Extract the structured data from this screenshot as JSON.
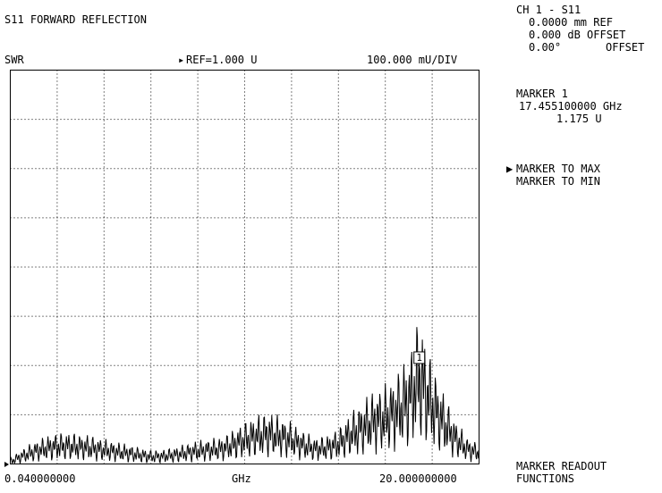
{
  "header": {
    "title": "S11 FORWARD REFLECTION",
    "format": "SWR",
    "reference": "REF=1.000 U",
    "scale": "100.000 mU/DIV"
  },
  "channel": {
    "label": "CH 1 - S11",
    "ref_plane": "0.0000 mm REF",
    "db_offset": "0.000 dB OFFSET",
    "phase_value": "0.00°",
    "phase_offset": "OFFSET"
  },
  "marker": {
    "title": "MARKER 1",
    "frequency": "17.455100000 GHz",
    "value": "1.175 U",
    "tag": "1"
  },
  "menu": {
    "items": [
      "MARKER TO MAX",
      "MARKER TO MIN"
    ],
    "selected": 0,
    "footer_line1": "MARKER READOUT",
    "footer_line2": "FUNCTIONS"
  },
  "axis": {
    "start": "0.040000000",
    "unit": "GHz",
    "stop": "20.000000000"
  },
  "chart_data": {
    "type": "line",
    "title": "S11 FORWARD REFLECTION",
    "xlabel": "GHz",
    "ylabel": "SWR",
    "xlim": [
      0.04,
      20.0
    ],
    "ylim": [
      1.0,
      1.8
    ],
    "x_divisions": 10,
    "y_divisions": 8,
    "grid": "dotted",
    "reference_value": 1.0,
    "marker_1": {
      "x": 17.4551,
      "y": 1.175
    },
    "series": [
      {
        "x": [
          0.04,
          0.5,
          1.0,
          1.5,
          2.0,
          2.5,
          3.0,
          3.5,
          4.0,
          4.5,
          5.0,
          5.5,
          6.0,
          6.5,
          7.0,
          7.5,
          8.0,
          8.5,
          9.0,
          9.5,
          10.0,
          10.5,
          11.0,
          11.5,
          12.0,
          12.5,
          13.0,
          13.5,
          14.0,
          14.5,
          15.0,
          15.5,
          16.0,
          16.5,
          17.0,
          17.455,
          18.0,
          18.5,
          19.0,
          19.5,
          20.0
        ],
        "y": [
          1.005,
          1.015,
          1.024,
          1.031,
          1.035,
          1.036,
          1.034,
          1.032,
          1.028,
          1.025,
          1.022,
          1.018,
          1.015,
          1.015,
          1.018,
          1.022,
          1.026,
          1.028,
          1.03,
          1.038,
          1.048,
          1.056,
          1.06,
          1.056,
          1.048,
          1.038,
          1.03,
          1.032,
          1.04,
          1.058,
          1.072,
          1.085,
          1.092,
          1.105,
          1.128,
          1.175,
          1.118,
          1.082,
          1.05,
          1.03,
          1.022
        ]
      }
    ]
  }
}
